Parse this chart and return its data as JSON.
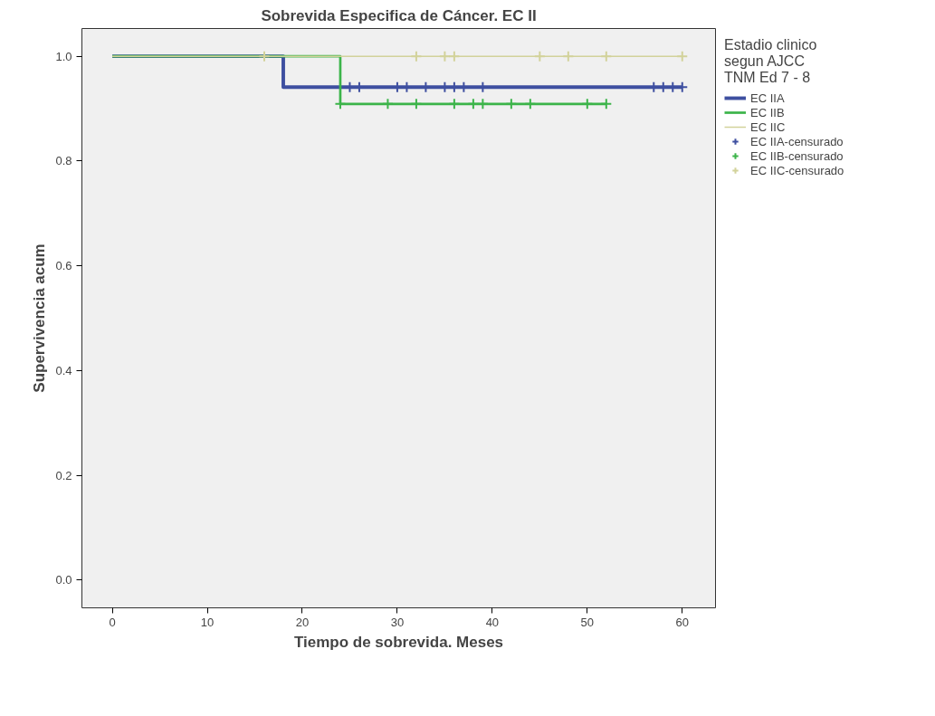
{
  "chart_data": {
    "type": "step",
    "title": "Sobrevida Especifica de Cáncer. EC II",
    "xlabel": "Tiempo de sobrevida. Meses",
    "ylabel": "Supervivencia acum",
    "legend_title": "Estadio clinico\nsegun AJCC\nTNM Ed 7 - 8",
    "legend": "right",
    "grid": false,
    "xlim": [
      -3.2,
      63.5
    ],
    "ylim": [
      -0.053,
      1.053
    ],
    "xticks": [
      0,
      10,
      20,
      30,
      40,
      50,
      60
    ],
    "yticks": [
      {
        "value": 0,
        "label": "0.0"
      },
      {
        "value": 0.2,
        "label": "0.2"
      },
      {
        "value": 0.4,
        "label": "0.4"
      },
      {
        "value": 0.6,
        "label": "0.6"
      },
      {
        "value": 0.8,
        "label": "0.8"
      },
      {
        "value": 1,
        "label": "1.0"
      }
    ],
    "series": [
      {
        "name": "EC IIA",
        "color": "#3e4fa0",
        "x": [
          0,
          18,
          60
        ],
        "values": [
          1,
          0.941,
          0.941
        ]
      },
      {
        "name": "EC IIB",
        "color": "#3cb44a",
        "x": [
          0,
          24,
          52
        ],
        "values": [
          1,
          0.909,
          0.909
        ]
      },
      {
        "name": "EC IIC",
        "color": "#d2d29a",
        "x": [
          0,
          60
        ],
        "values": [
          1,
          1
        ]
      },
      {
        "name": "EC IIA-censurado",
        "type": "scatter",
        "marker": "cross",
        "color": "#3e4fa0",
        "x": [
          25,
          26,
          30,
          31,
          33,
          35,
          36,
          37,
          39,
          57,
          58,
          59,
          60
        ],
        "values": [
          0.941,
          0.941,
          0.941,
          0.941,
          0.941,
          0.941,
          0.941,
          0.941,
          0.941,
          0.941,
          0.941,
          0.941,
          0.941
        ]
      },
      {
        "name": "EC IIB-censurado",
        "type": "scatter",
        "marker": "cross",
        "color": "#3cb44a",
        "x": [
          24,
          29,
          32,
          36,
          38,
          39,
          42,
          44,
          50,
          52
        ],
        "values": [
          0.909,
          0.909,
          0.909,
          0.909,
          0.909,
          0.909,
          0.909,
          0.909,
          0.909,
          0.909
        ]
      },
      {
        "name": "EC IIC-censurado",
        "type": "scatter",
        "marker": "cross",
        "color": "#d2d29a",
        "x": [
          16,
          32,
          35,
          36,
          45,
          48,
          52,
          60
        ],
        "values": [
          1,
          1,
          1,
          1,
          1,
          1,
          1,
          1
        ]
      }
    ]
  }
}
